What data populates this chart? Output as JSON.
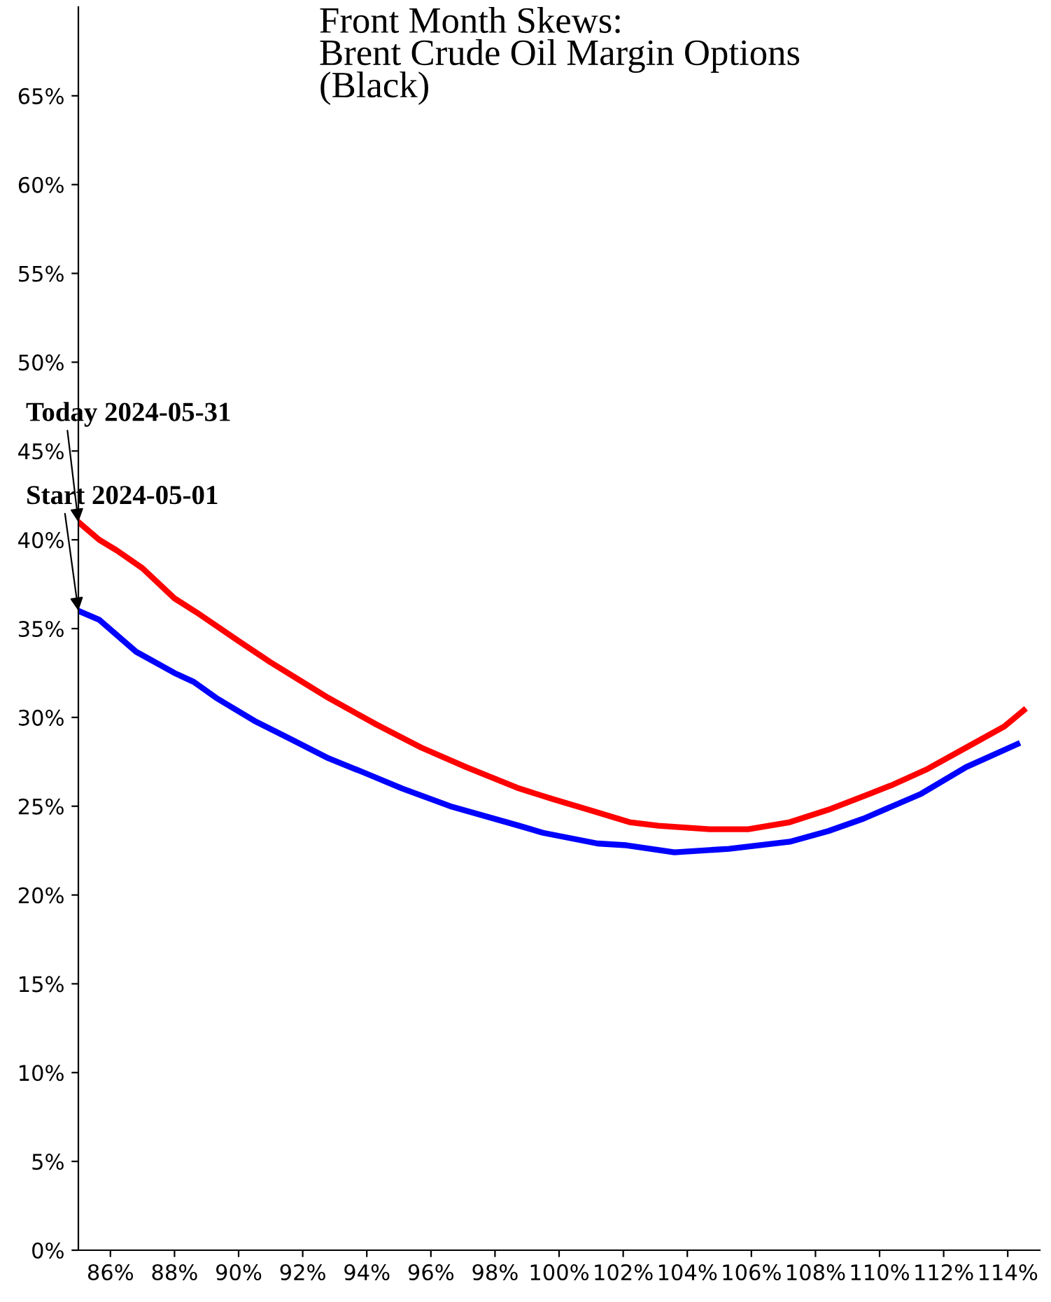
{
  "chart_data": {
    "type": "line",
    "title": "Front Month Skews:\nBrent Crude Oil Margin Options\n(Black)",
    "xlim": [
      85,
      115
    ],
    "xticks": [
      {
        "value": 86,
        "label": "86%"
      },
      {
        "value": 88,
        "label": "88%"
      },
      {
        "value": 90,
        "label": "90%"
      },
      {
        "value": 92,
        "label": "92%"
      },
      {
        "value": 94,
        "label": "94%"
      },
      {
        "value": 96,
        "label": "96%"
      },
      {
        "value": 98,
        "label": "98%"
      },
      {
        "value": 100,
        "label": "100%"
      },
      {
        "value": 102,
        "label": "102%"
      },
      {
        "value": 104,
        "label": "104%"
      },
      {
        "value": 106,
        "label": "106%"
      },
      {
        "value": 108,
        "label": "108%"
      },
      {
        "value": 110,
        "label": "110%"
      },
      {
        "value": 112,
        "label": "112%"
      },
      {
        "value": 114,
        "label": "114%"
      }
    ],
    "ylim": [
      0,
      70
    ],
    "yticks": [
      {
        "value": 0,
        "label": "0%"
      },
      {
        "value": 5,
        "label": "5%"
      },
      {
        "value": 10,
        "label": "10%"
      },
      {
        "value": 15,
        "label": "15%"
      },
      {
        "value": 20,
        "label": "20%"
      },
      {
        "value": 25,
        "label": "25%"
      },
      {
        "value": 30,
        "label": "30%"
      },
      {
        "value": 35,
        "label": "35%"
      },
      {
        "value": 40,
        "label": "40%"
      },
      {
        "value": 45,
        "label": "45%"
      },
      {
        "value": 50,
        "label": "50%"
      },
      {
        "value": 55,
        "label": "55%"
      },
      {
        "value": 60,
        "label": "60%"
      },
      {
        "value": 65,
        "label": "65%"
      }
    ],
    "grid": false,
    "legend": false,
    "marker": "none",
    "line_style": "solid",
    "series": [
      {
        "color": "#ff0000",
        "x": [
          85,
          85.65,
          86.2,
          87.0,
          88.0,
          88.7,
          90.0,
          91.0,
          91.9,
          92.8,
          94.3,
          95.7,
          97.1,
          98.75,
          99.8,
          101.1,
          102.2,
          103.1,
          104.7,
          105.9,
          107.2,
          108.4,
          109.7,
          110.4,
          111.5,
          112.7,
          113.9,
          114.5
        ],
        "values": [
          41.0,
          40.0,
          39.4,
          38.4,
          36.7,
          35.9,
          34.3,
          33.1,
          32.1,
          31.1,
          29.6,
          28.3,
          27.2,
          26.0,
          25.4,
          24.7,
          24.1,
          23.9,
          23.7,
          23.7,
          24.1,
          24.8,
          25.7,
          26.2,
          27.1,
          28.3,
          29.5,
          30.4
        ]
      },
      {
        "color": "#0000ff",
        "x": [
          85,
          85.65,
          86.8,
          88.0,
          88.6,
          89.3,
          90.5,
          91.6,
          92.8,
          93.9,
          95.1,
          96.6,
          98.75,
          99.5,
          101.2,
          102.1,
          103.6,
          105.3,
          107.2,
          108.4,
          109.5,
          111.3,
          112.7,
          114.3
        ],
        "values": [
          36.0,
          35.5,
          33.7,
          32.5,
          32.0,
          31.1,
          29.8,
          28.8,
          27.7,
          26.9,
          26.0,
          25.0,
          23.9,
          23.5,
          22.9,
          22.8,
          22.4,
          22.6,
          23.0,
          23.6,
          24.3,
          25.7,
          27.2,
          28.5
        ]
      }
    ],
    "annotations": [
      {
        "text": "Today 2024-05-31",
        "x": 85,
        "y": 41.0
      },
      {
        "text": "Start 2024-05-01",
        "x": 85,
        "y": 36.0
      }
    ]
  }
}
